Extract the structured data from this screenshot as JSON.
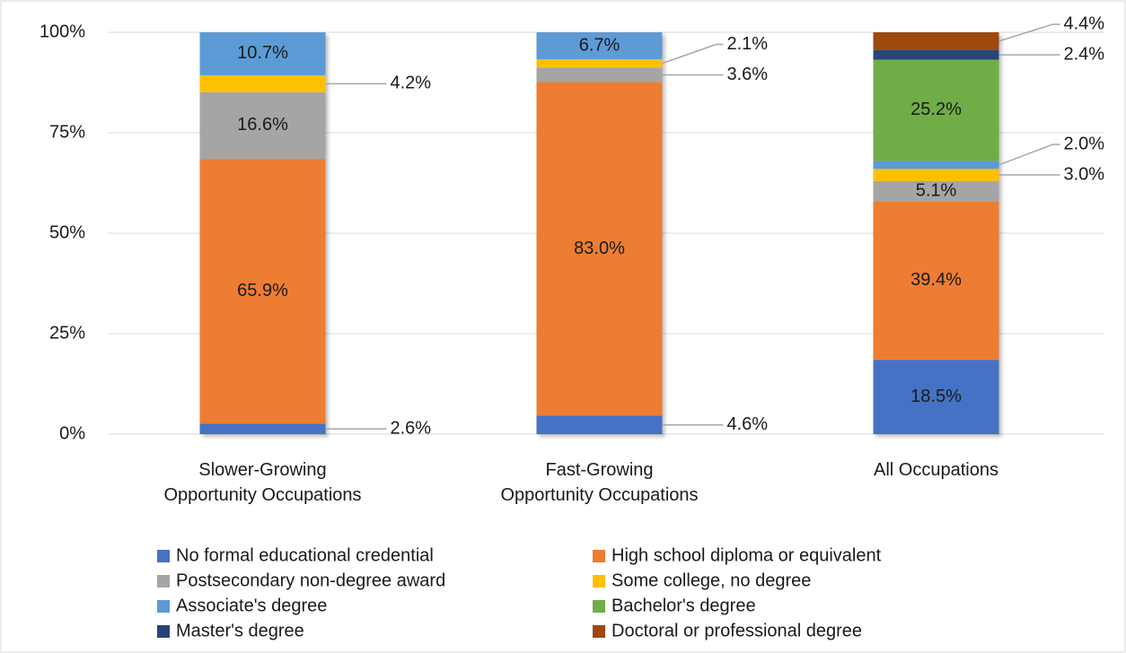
{
  "chart_data": {
    "type": "bar",
    "stacked": true,
    "categories": [
      "Slower-Growing\nOpportunity Occupations",
      "Fast-Growing\nOpportunity Occupations",
      "All Occupations"
    ],
    "series": [
      {
        "name": "No formal educational credential",
        "color": "#4472c4",
        "values": [
          2.6,
          4.6,
          18.5
        ],
        "value_labels": [
          "2.6%",
          "4.6%",
          "18.5%"
        ]
      },
      {
        "name": "High school diploma or equivalent",
        "color": "#ed7d31",
        "values": [
          65.9,
          83.0,
          39.4
        ],
        "value_labels": [
          "65.9%",
          "83.0%",
          "39.4%"
        ]
      },
      {
        "name": "Postsecondary non-degree award",
        "color": "#a5a5a5",
        "values": [
          16.6,
          3.6,
          5.1
        ],
        "value_labels": [
          "16.6%",
          "3.6%",
          "5.1%"
        ]
      },
      {
        "name": "Some college, no degree",
        "color": "#ffc000",
        "values": [
          4.2,
          2.1,
          3.0
        ],
        "value_labels": [
          "4.2%",
          "2.1%",
          "3.0%"
        ]
      },
      {
        "name": "Associate's degree",
        "color": "#5b9bd5",
        "values": [
          10.7,
          6.7,
          2.0
        ],
        "value_labels": [
          "10.7%",
          "6.7%",
          "2.0%"
        ]
      },
      {
        "name": "Bachelor's degree",
        "color": "#70ad47",
        "values": [
          null,
          null,
          25.2
        ],
        "value_labels": [
          null,
          null,
          "25.2%"
        ]
      },
      {
        "name": "Master's degree",
        "color": "#264478",
        "values": [
          null,
          null,
          2.4
        ],
        "value_labels": [
          null,
          null,
          "2.4%"
        ]
      },
      {
        "name": "Doctoral or professional degree",
        "color": "#9e480e",
        "values": [
          null,
          null,
          4.4
        ],
        "value_labels": [
          null,
          null,
          "4.4%"
        ]
      }
    ],
    "ylim": [
      0,
      100
    ],
    "yticks": [
      {
        "value": 0,
        "label": "0%"
      },
      {
        "value": 25,
        "label": "25%"
      },
      {
        "value": 50,
        "label": "50%"
      },
      {
        "value": 75,
        "label": "75%"
      },
      {
        "value": 100,
        "label": "100%"
      }
    ],
    "grid": true,
    "legend": "bottom"
  }
}
